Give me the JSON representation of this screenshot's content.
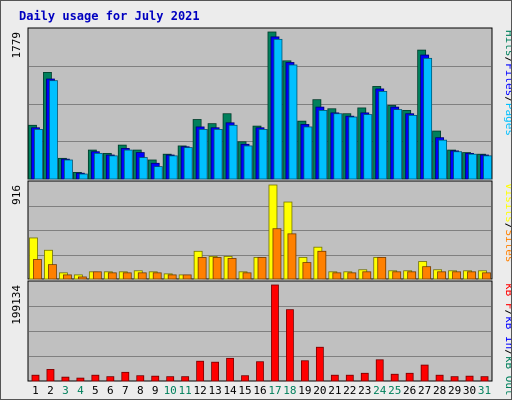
{
  "chart_data": {
    "type": "bar",
    "title": "Daily usage for July 2021",
    "categories": [
      "1",
      "2",
      "3",
      "4",
      "5",
      "6",
      "7",
      "8",
      "9",
      "10",
      "11",
      "12",
      "13",
      "14",
      "15",
      "16",
      "17",
      "18",
      "19",
      "20",
      "21",
      "22",
      "23",
      "24",
      "25",
      "26",
      "27",
      "28",
      "29",
      "30",
      "31"
    ],
    "weekend_days": [
      "3",
      "4",
      "10",
      "11",
      "17",
      "18",
      "24",
      "25",
      "31"
    ],
    "colors": {
      "hits": "#00805c",
      "files": "#0000ff",
      "pages": "#00c0ff",
      "visits": "#ffff00",
      "sites": "#ff8000",
      "kbin": "#0000ff",
      "kbout": "#00805c",
      "kbf": "#ff0000",
      "weekday_label": "#000000",
      "weekend_label": "#00805c"
    },
    "panels": [
      {
        "id": "hits",
        "ymax": 1779,
        "ymax_label": "1779",
        "legend": [
          {
            "text": "Hits",
            "color": "#00805c"
          },
          {
            "text": "/",
            "color": "#000000"
          },
          {
            "text": "Files",
            "color": "#0000ff"
          },
          {
            "text": "/",
            "color": "#000000"
          },
          {
            "text": "Pages",
            "color": "#00c0ff"
          }
        ],
        "series": [
          {
            "name": "Hits",
            "color": "#00805c",
            "values": [
              650,
              1290,
              250,
              80,
              350,
              310,
              410,
              350,
              230,
              300,
              400,
              720,
              670,
              790,
              450,
              640,
              1779,
              1430,
              700,
              960,
              850,
              790,
              860,
              1120,
              890,
              830,
              1560,
              580,
              350,
              320,
              300
            ]
          },
          {
            "name": "Files",
            "color": "#0000ff",
            "values": [
              620,
              1210,
              240,
              70,
              330,
              290,
              370,
              320,
              190,
              290,
              390,
              630,
              620,
              680,
              420,
              620,
              1720,
              1410,
              660,
              870,
              800,
              760,
              800,
              1090,
              870,
              790,
              1500,
              500,
              340,
              310,
              290
            ]
          },
          {
            "name": "Pages",
            "color": "#00c0ff",
            "values": [
              600,
              1190,
              230,
              60,
              310,
              280,
              350,
              260,
              150,
              280,
              380,
              600,
              600,
              650,
              400,
              600,
              1690,
              1380,
              630,
              830,
              790,
              750,
              780,
              1060,
              840,
              770,
              1460,
              470,
              330,
              300,
              280
            ]
          }
        ]
      },
      {
        "id": "visits",
        "ymax": 916,
        "ymax_label": "916",
        "legend": [
          {
            "text": "Visits",
            "color": "#ffff00"
          },
          {
            "text": "/",
            "color": "#000000"
          },
          {
            "text": "Sites",
            "color": "#ff8000"
          }
        ],
        "series": [
          {
            "name": "Visits",
            "color": "#ffff00",
            "values": [
              400,
              280,
              60,
              40,
              70,
              70,
              70,
              80,
              70,
              50,
              40,
              270,
              220,
              220,
              70,
              210,
              916,
              750,
              210,
              310,
              70,
              70,
              90,
              210,
              80,
              80,
              170,
              90,
              80,
              80,
              80
            ]
          },
          {
            "name": "Sites",
            "color": "#ff8000",
            "values": [
              190,
              140,
              40,
              20,
              70,
              60,
              60,
              60,
              60,
              40,
              40,
              210,
              210,
              200,
              60,
              210,
              490,
              440,
              160,
              270,
              60,
              60,
              70,
              210,
              70,
              70,
              120,
              70,
              70,
              70,
              60
            ]
          }
        ]
      },
      {
        "id": "kbytes",
        "ymax": 199134,
        "ymax_label": "199134",
        "legend": [
          {
            "text": "Visits",
            "color": "#ffff00"
          },
          {
            "text": "/",
            "color": "#000000"
          },
          {
            "text": "Sites",
            "color": "#ff8000"
          }
        ],
        "legend_kb": [
          {
            "text": "kB F",
            "color": "#ff0000"
          },
          {
            "text": "/",
            "color": "#000000"
          },
          {
            "text": "kB In",
            "color": "#0000ff"
          },
          {
            "text": "/",
            "color": "#000000"
          },
          {
            "text": "kB Out",
            "color": "#00805c"
          }
        ],
        "series": [
          {
            "name": "kB F",
            "color": "#ff0000",
            "values": [
              12000,
              24000,
              8000,
              6000,
              12000,
              9000,
              18000,
              11000,
              10000,
              9000,
              9000,
              41000,
              39000,
              47000,
              11000,
              40000,
              199134,
              148000,
              42000,
              70000,
              12000,
              12000,
              16000,
              44000,
              14000,
              16000,
              33000,
              12000,
              9000,
              10000,
              9000
            ]
          }
        ]
      }
    ]
  }
}
